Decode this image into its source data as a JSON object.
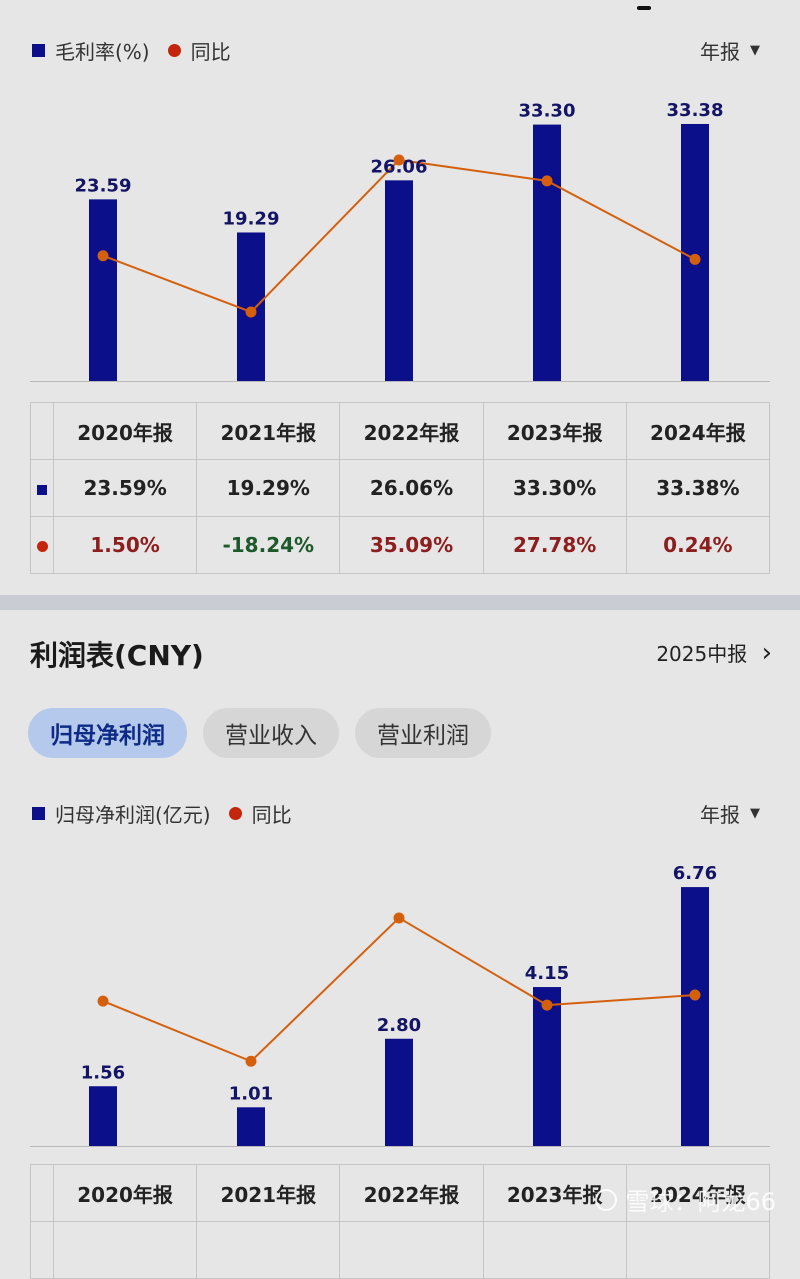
{
  "colors": {
    "bar": "#0c0f8a",
    "line": "#d4600e",
    "dot": "#c3250d",
    "positive": "#8c1e1e",
    "negative": "#1d5a2a",
    "tab_active_bg": "#b5c9ec"
  },
  "chart1": {
    "legend_bar": "毛利率(%)",
    "legend_line": "同比",
    "period": "年报",
    "period_arrow": "▼"
  },
  "chart2": {
    "legend_bar": "归母净利润(亿元)",
    "legend_line": "同比",
    "period": "年报",
    "period_arrow": "▼"
  },
  "income": {
    "title": "利润表(CNY)",
    "report": "2025中报",
    "report_arrow": "›",
    "tabs": [
      "归母净利润",
      "营业收入",
      "营业利润"
    ]
  },
  "table1": {
    "headers": [
      "2020年报",
      "2021年报",
      "2022年报",
      "2023年报",
      "2024年报"
    ],
    "row_values": [
      "23.59%",
      "19.29%",
      "26.06%",
      "33.30%",
      "33.38%"
    ],
    "row_yoy": [
      "1.50%",
      "-18.24%",
      "35.09%",
      "27.78%",
      "0.24%"
    ]
  },
  "table2": {
    "headers": [
      "2020年报",
      "2021年报",
      "2022年报",
      "2023年报",
      "2024年报"
    ]
  },
  "watermark": "雪球：阿龙66",
  "chart_data": [
    {
      "type": "bar",
      "categories": [
        "2020年报",
        "2021年报",
        "2022年报",
        "2023年报",
        "2024年报"
      ],
      "series": [
        {
          "name": "毛利率(%)",
          "type": "bar",
          "values": [
            23.59,
            19.29,
            26.06,
            33.3,
            33.38
          ],
          "labels": [
            "23.59",
            "19.29",
            "26.06",
            "33.30",
            "33.38"
          ]
        },
        {
          "name": "同比",
          "type": "line",
          "values": [
            1.5,
            -18.24,
            35.09,
            27.78,
            0.24
          ]
        }
      ],
      "legend": "top-left"
    },
    {
      "type": "bar",
      "categories": [
        "2020年报",
        "2021年报",
        "2022年报",
        "2023年报",
        "2024年报"
      ],
      "series": [
        {
          "name": "归母净利润(亿元)",
          "type": "bar",
          "values": [
            1.56,
            1.01,
            2.8,
            4.15,
            6.76
          ],
          "labels": [
            "1.56",
            "1.01",
            "2.80",
            "4.15",
            "6.76"
          ]
        },
        {
          "name": "同比",
          "type": "line",
          "values": [
            54,
            -35,
            177,
            48,
            63
          ]
        }
      ],
      "legend": "top-left"
    }
  ]
}
